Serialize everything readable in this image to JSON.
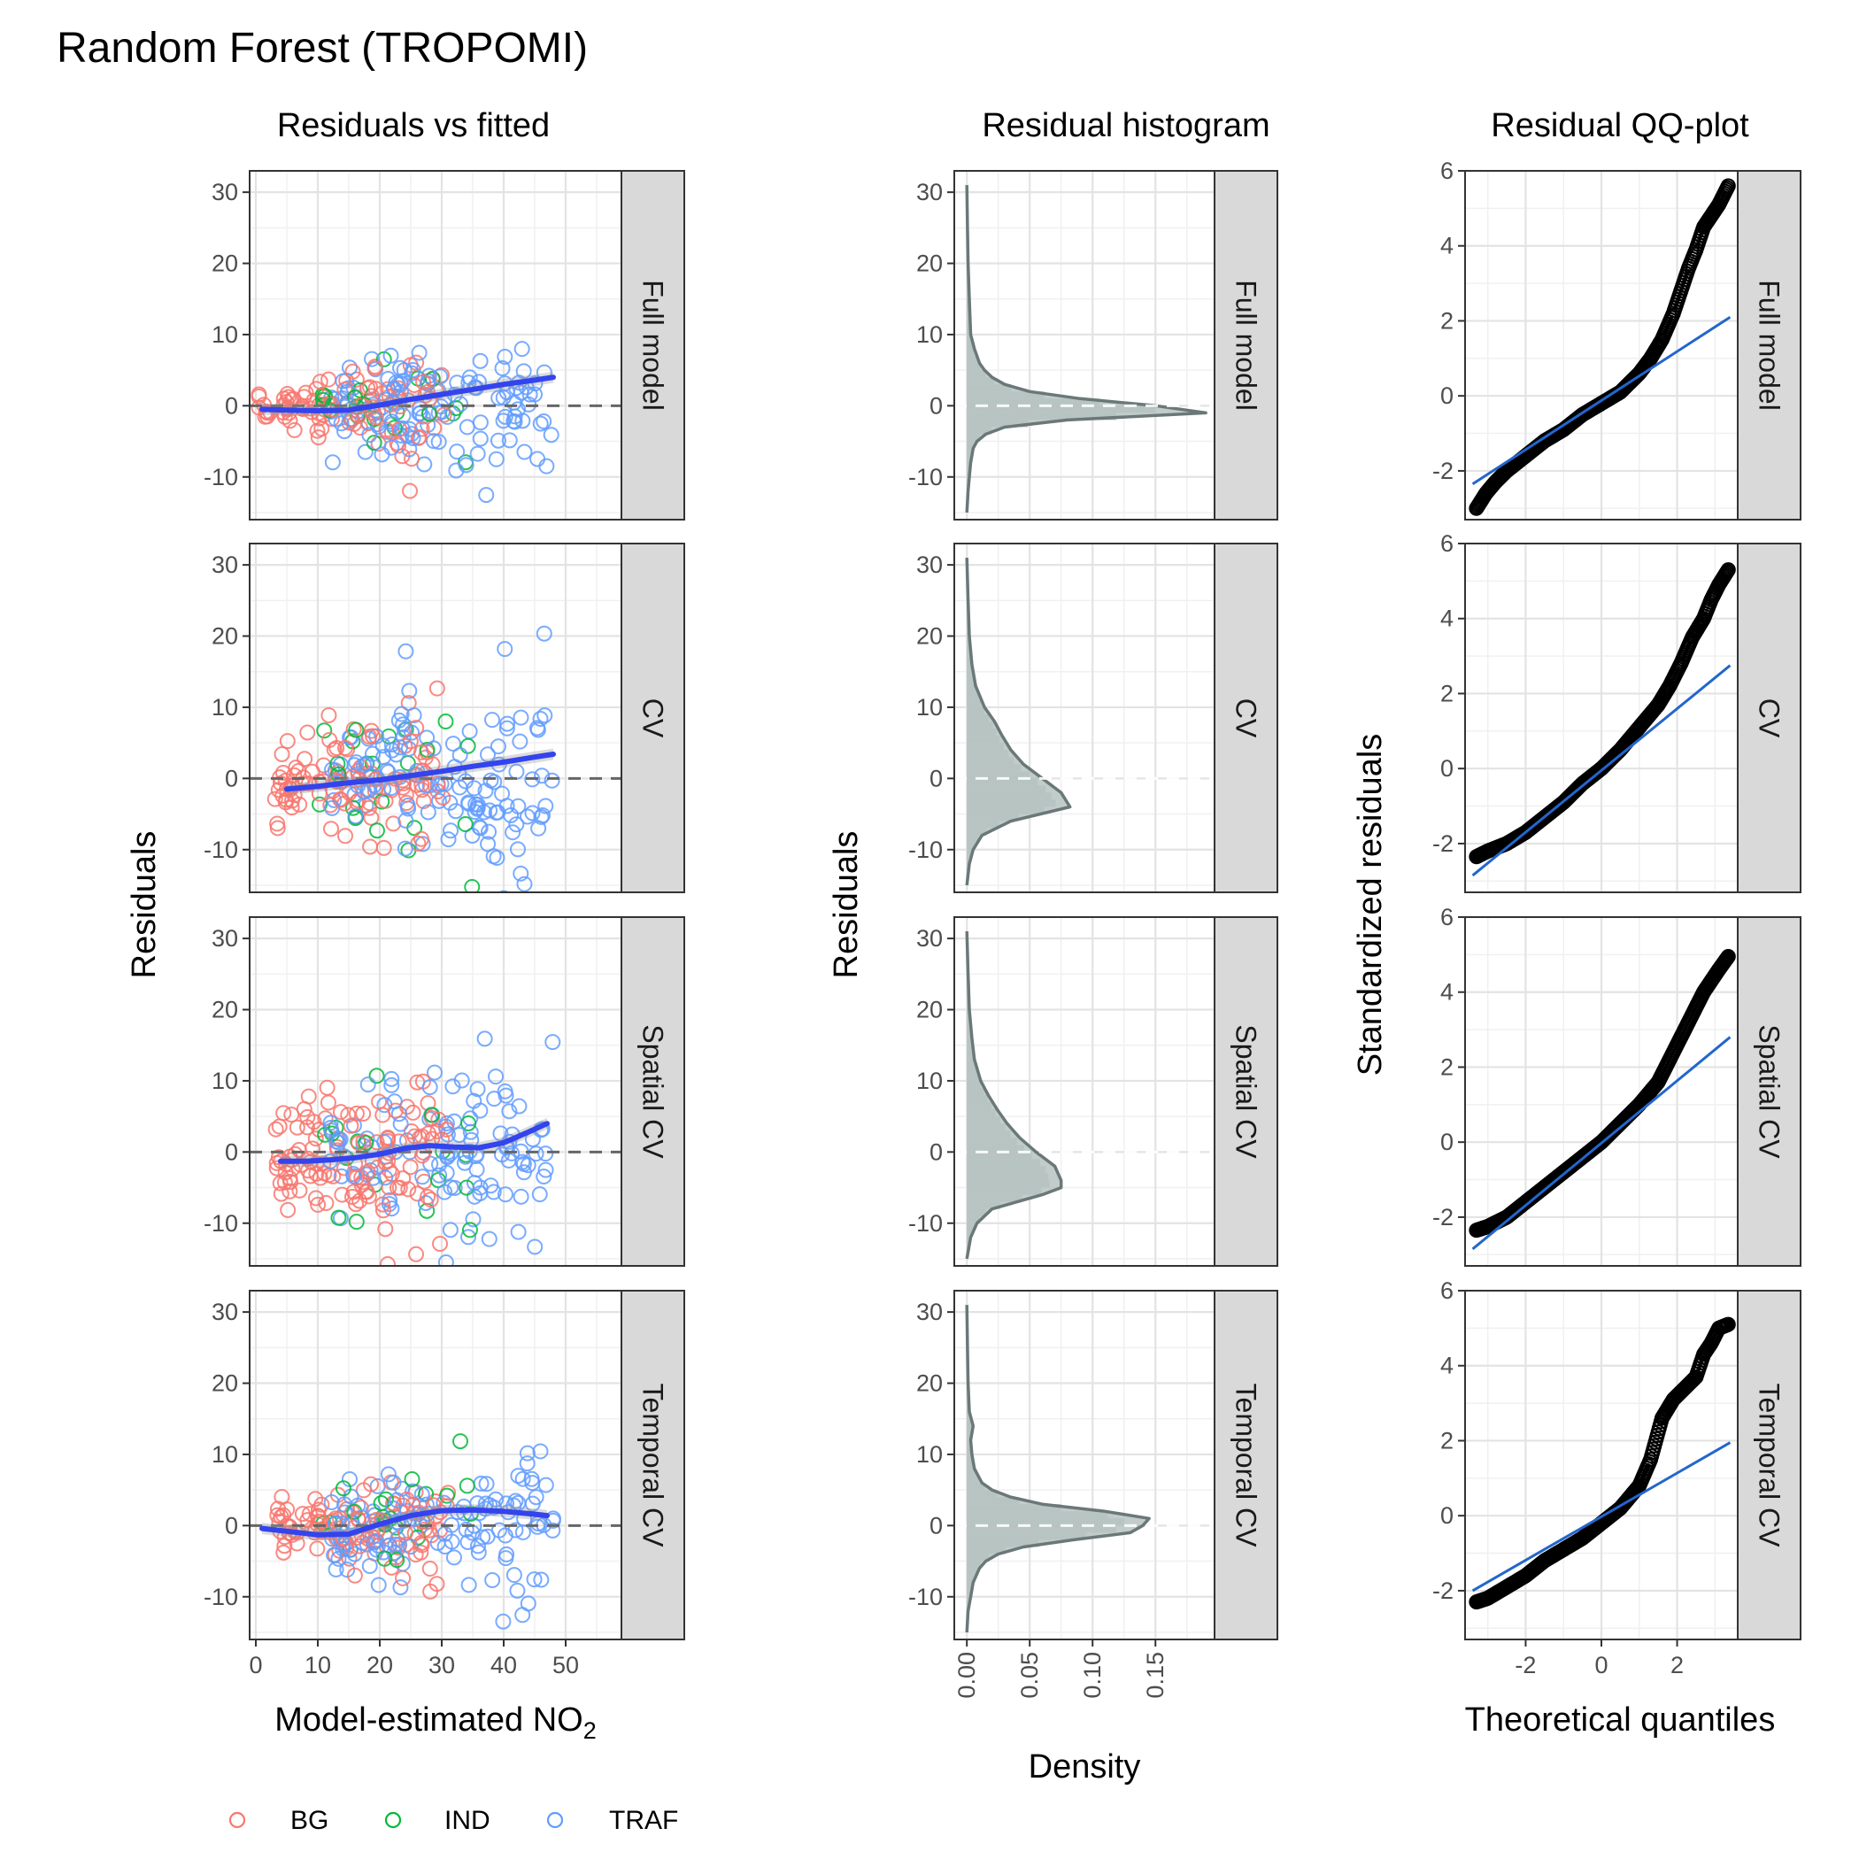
{
  "title": "Random Forest (TROPOMI)",
  "colors": {
    "BG": "#F8766D",
    "IND": "#00BA38",
    "TRAF": "#619CFF",
    "smooth": "#3344EE",
    "qqline": "#2266CC",
    "hist_fill": "#B7C4C2",
    "density_line": "#6B7878",
    "strip_fill": "#D9D9D9"
  },
  "chart_data": [
    {
      "type": "scatter",
      "title": "Residuals vs fitted",
      "xlabel": "Model-estimated NO",
      "xlabel_subscript": "2",
      "ylabel": "Residuals",
      "xlim": [
        -1,
        59
      ],
      "ylim": [
        -16,
        33
      ],
      "xticks": [
        0,
        10,
        20,
        30,
        40,
        50
      ],
      "yticks": [
        -10,
        0,
        10,
        20,
        30
      ],
      "reference_line": 0,
      "panels": [
        {
          "strip": "Full model",
          "smooth": {
            "x": [
              1,
              5,
              10,
              15,
              20,
              25,
              30,
              35,
              40,
              45,
              48
            ],
            "y": [
              -0.5,
              -0.6,
              -0.7,
              -0.6,
              0.1,
              0.9,
              1.6,
              2.3,
              3.0,
              3.6,
              4.0
            ]
          }
        },
        {
          "strip": "CV",
          "smooth": {
            "x": [
              5,
              10,
              15,
              20,
              25,
              30,
              35,
              40,
              45,
              48
            ],
            "y": [
              -1.5,
              -1.1,
              -0.6,
              -0.2,
              0.4,
              1.0,
              1.7,
              2.3,
              3.0,
              3.4
            ]
          }
        },
        {
          "strip": "Spatial CV",
          "smooth": {
            "x": [
              4,
              8,
              12,
              16,
              20,
              24,
              28,
              32,
              36,
              40,
              44,
              47
            ],
            "y": [
              -1.3,
              -1.3,
              -1.1,
              -0.8,
              -0.3,
              0.5,
              0.9,
              0.7,
              0.6,
              1.3,
              2.8,
              4.0
            ]
          }
        },
        {
          "strip": "Temporal CV",
          "smooth": {
            "x": [
              1,
              5,
              10,
              15,
              20,
              25,
              30,
              35,
              40,
              45,
              47
            ],
            "y": [
              -0.4,
              -0.8,
              -1.3,
              -1.2,
              0.2,
              1.4,
              2.1,
              2.2,
              2.0,
              1.6,
              1.4
            ]
          }
        }
      ]
    },
    {
      "type": "area",
      "title": "Residual histogram",
      "xlabel": "Density",
      "ylabel": "Residuals",
      "xlim": [
        -0.01,
        0.197
      ],
      "ylim": [
        -16,
        33
      ],
      "xticks": [
        0.0,
        0.05,
        0.1,
        0.15
      ],
      "xtick_labels": [
        "0.00",
        "0.05",
        "0.10",
        "0.15"
      ],
      "yticks": [
        -10,
        0,
        10,
        20,
        30
      ],
      "panels": [
        {
          "strip": "Full model",
          "density": {
            "y": [
              -15,
              -12,
              -10,
              -8,
              -6,
              -5,
              -4,
              -3,
              -2,
              -1,
              0,
              1,
              2,
              3,
              4,
              5,
              6,
              7,
              8,
              10,
              15,
              20,
              25,
              31
            ],
            "x": [
              0,
              0.001,
              0.002,
              0.003,
              0.005,
              0.008,
              0.015,
              0.03,
              0.08,
              0.19,
              0.15,
              0.09,
              0.05,
              0.03,
              0.02,
              0.014,
              0.01,
              0.008,
              0.006,
              0.003,
              0.002,
              0.001,
              0.0005,
              0
            ]
          }
        },
        {
          "strip": "CV",
          "density": {
            "y": [
              -15,
              -12,
              -10,
              -8,
              -6,
              -4,
              -2,
              0,
              2,
              4,
              6,
              8,
              10,
              13,
              16,
              20,
              25,
              31
            ],
            "x": [
              0,
              0.002,
              0.005,
              0.012,
              0.035,
              0.082,
              0.075,
              0.06,
              0.045,
              0.035,
              0.028,
              0.022,
              0.014,
              0.007,
              0.004,
              0.002,
              0.001,
              0
            ]
          }
        },
        {
          "strip": "Spatial CV",
          "density": {
            "y": [
              -15,
              -12,
              -10,
              -8,
              -6,
              -5,
              -4,
              -2,
              0,
              2,
              4,
              6,
              8,
              10,
              13,
              16,
              20,
              25,
              31
            ],
            "x": [
              0,
              0.003,
              0.008,
              0.02,
              0.06,
              0.075,
              0.075,
              0.07,
              0.055,
              0.042,
              0.032,
              0.024,
              0.017,
              0.011,
              0.006,
              0.004,
              0.002,
              0.001,
              0
            ]
          }
        },
        {
          "strip": "Temporal CV",
          "density": {
            "y": [
              -15,
              -12,
              -10,
              -8,
              -6,
              -5,
              -4,
              -3,
              -2,
              -1,
              0,
              1,
              2,
              3,
              4,
              5,
              6,
              8,
              10,
              12,
              14,
              16,
              20,
              25,
              31
            ],
            "x": [
              0,
              0.001,
              0.003,
              0.005,
              0.01,
              0.015,
              0.025,
              0.045,
              0.085,
              0.13,
              0.14,
              0.145,
              0.11,
              0.06,
              0.035,
              0.02,
              0.012,
              0.006,
              0.004,
              0.003,
              0.005,
              0.002,
              0.001,
              0.0005,
              0
            ]
          }
        }
      ]
    },
    {
      "type": "scatter",
      "title": "Residual QQ-plot",
      "xlabel": "Theoretical quantiles",
      "ylabel": "Standardized residuals",
      "xlim": [
        -3.6,
        3.6
      ],
      "ylim": [
        -3.3,
        6.0
      ],
      "xticks": [
        -2,
        0,
        2
      ],
      "yticks": [
        -2,
        0,
        2,
        4,
        6
      ],
      "panels": [
        {
          "strip": "Full model",
          "qq_points": {
            "x": [
              -3.3,
              -3.05,
              -2.8,
              -2.5,
              -2.0,
              -1.5,
              -1.0,
              -0.5,
              0.0,
              0.5,
              1.0,
              1.3,
              1.6,
              1.9,
              2.1,
              2.3,
              2.5,
              2.7,
              2.9,
              3.1,
              3.35
            ],
            "y": [
              -3.0,
              -2.6,
              -2.3,
              -2.0,
              -1.6,
              -1.2,
              -0.9,
              -0.5,
              -0.2,
              0.1,
              0.6,
              1.0,
              1.5,
              2.2,
              2.8,
              3.4,
              3.9,
              4.5,
              4.8,
              5.1,
              5.6
            ]
          },
          "qq_line": {
            "x": [
              -3.4,
              3.4
            ],
            "y": [
              -2.35,
              2.1
            ]
          }
        },
        {
          "strip": "CV",
          "qq_points": {
            "x": [
              -3.3,
              -3.0,
              -2.5,
              -2.0,
              -1.5,
              -1.0,
              -0.5,
              0.0,
              0.5,
              1.0,
              1.5,
              1.8,
              2.1,
              2.4,
              2.7,
              2.9,
              3.1,
              3.35
            ],
            "y": [
              -2.35,
              -2.2,
              -2.0,
              -1.7,
              -1.3,
              -0.9,
              -0.4,
              0.0,
              0.5,
              1.1,
              1.7,
              2.2,
              2.8,
              3.5,
              4.0,
              4.5,
              4.9,
              5.3
            ]
          },
          "qq_line": {
            "x": [
              -3.4,
              3.4
            ],
            "y": [
              -2.85,
              2.75
            ]
          }
        },
        {
          "strip": "Spatial CV",
          "qq_points": {
            "x": [
              -3.3,
              -3.0,
              -2.5,
              -2.0,
              -1.5,
              -1.0,
              -0.5,
              0.0,
              0.5,
              1.0,
              1.5,
              1.8,
              2.1,
              2.4,
              2.7,
              2.9,
              3.1,
              3.35
            ],
            "y": [
              -2.35,
              -2.25,
              -2.0,
              -1.6,
              -1.2,
              -0.8,
              -0.4,
              0.0,
              0.5,
              1.0,
              1.6,
              2.2,
              2.8,
              3.4,
              4.0,
              4.3,
              4.6,
              4.95
            ]
          },
          "qq_line": {
            "x": [
              -3.4,
              3.4
            ],
            "y": [
              -2.85,
              2.8
            ]
          }
        },
        {
          "strip": "Temporal CV",
          "qq_points": {
            "x": [
              -3.3,
              -3.0,
              -2.5,
              -2.0,
              -1.5,
              -1.0,
              -0.5,
              0.0,
              0.5,
              1.0,
              1.3,
              1.6,
              1.9,
              2.2,
              2.5,
              2.7,
              2.9,
              3.1,
              3.35
            ],
            "y": [
              -2.3,
              -2.2,
              -1.9,
              -1.6,
              -1.2,
              -0.9,
              -0.6,
              -0.2,
              0.2,
              0.8,
              1.5,
              2.6,
              3.1,
              3.4,
              3.7,
              4.3,
              4.6,
              5.0,
              5.1
            ]
          },
          "qq_line": {
            "x": [
              -3.4,
              3.4
            ],
            "y": [
              -2.0,
              1.95
            ]
          }
        }
      ]
    }
  ],
  "legend": {
    "placement": "bottom-left",
    "items": [
      {
        "label": "BG",
        "color": "#F8766D"
      },
      {
        "label": "IND",
        "color": "#00BA38"
      },
      {
        "label": "TRAF",
        "color": "#619CFF"
      }
    ]
  }
}
